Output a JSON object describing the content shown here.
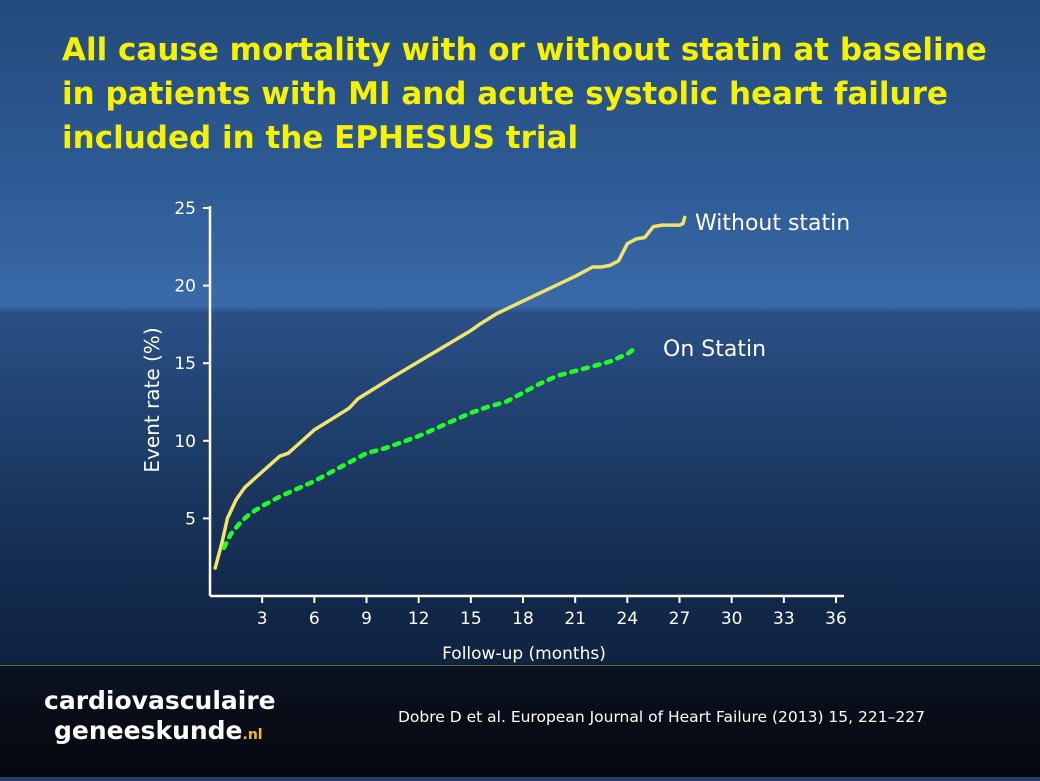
{
  "slide": {
    "title": "All cause mortality with or without statin at baseline in patients with MI and acute systolic heart failure included in the EPHESUS trial",
    "citation": "Dobre D et al. European Journal of Heart Failure (2013) 15, 221–227",
    "logo": {
      "line1": "cardiovasculaire",
      "line2": "geneeskunde",
      "suffix": ".nl"
    }
  },
  "colors": {
    "title": "#f7f200",
    "without_statin": "#f2e36a",
    "on_statin": "#22ff22",
    "axis": "#ffffff"
  },
  "chart_data": {
    "type": "line",
    "xlabel": "Follow-up (months)",
    "ylabel": "Event rate (%)",
    "xlim": [
      0,
      36
    ],
    "ylim": [
      0,
      25
    ],
    "xticks": [
      3,
      6,
      9,
      12,
      15,
      18,
      21,
      24,
      27,
      30,
      33,
      36
    ],
    "yticks": [
      5,
      10,
      15,
      20,
      25
    ],
    "grid": false,
    "legend": "direct labels at line ends",
    "series": [
      {
        "name": "Without statin",
        "style": "solid",
        "x": [
          0.3,
          0.7,
          1.0,
          1.5,
          2.0,
          2.7,
          3.3,
          4.0,
          4.5,
          5.0,
          6.0,
          7.0,
          8.0,
          8.5,
          9.5,
          10.5,
          12.0,
          13.5,
          15.0,
          15.5,
          16.5,
          18.0,
          19.5,
          21.0,
          22.0,
          22.5,
          23.0,
          23.5,
          24.0,
          24.5,
          25.0,
          25.5,
          26.0,
          26.5,
          27.0,
          27.2,
          27.3
        ],
        "y": [
          1.8,
          3.5,
          5.0,
          6.2,
          7.0,
          7.7,
          8.3,
          9.0,
          9.2,
          9.7,
          10.7,
          11.4,
          12.1,
          12.7,
          13.4,
          14.1,
          15.1,
          16.1,
          17.1,
          17.5,
          18.2,
          19.0,
          19.8,
          20.6,
          21.2,
          21.2,
          21.3,
          21.6,
          22.7,
          23.0,
          23.1,
          23.8,
          23.9,
          23.9,
          23.9,
          24.0,
          24.4
        ]
      },
      {
        "name": "On Statin",
        "style": "dotted",
        "x": [
          0.8,
          1.2,
          1.8,
          2.3,
          3.0,
          4.0,
          5.0,
          6.0,
          7.0,
          8.0,
          9.0,
          10.0,
          11.0,
          12.0,
          13.0,
          14.0,
          15.0,
          16.0,
          17.0,
          18.0,
          19.0,
          20.0,
          21.0,
          22.0,
          23.0,
          24.0,
          24.5
        ],
        "y": [
          3.1,
          4.0,
          4.8,
          5.3,
          5.8,
          6.4,
          6.9,
          7.4,
          8.0,
          8.6,
          9.2,
          9.5,
          9.9,
          10.3,
          10.8,
          11.3,
          11.8,
          12.2,
          12.5,
          13.1,
          13.7,
          14.2,
          14.5,
          14.8,
          15.1,
          15.6,
          16.0
        ]
      }
    ]
  }
}
